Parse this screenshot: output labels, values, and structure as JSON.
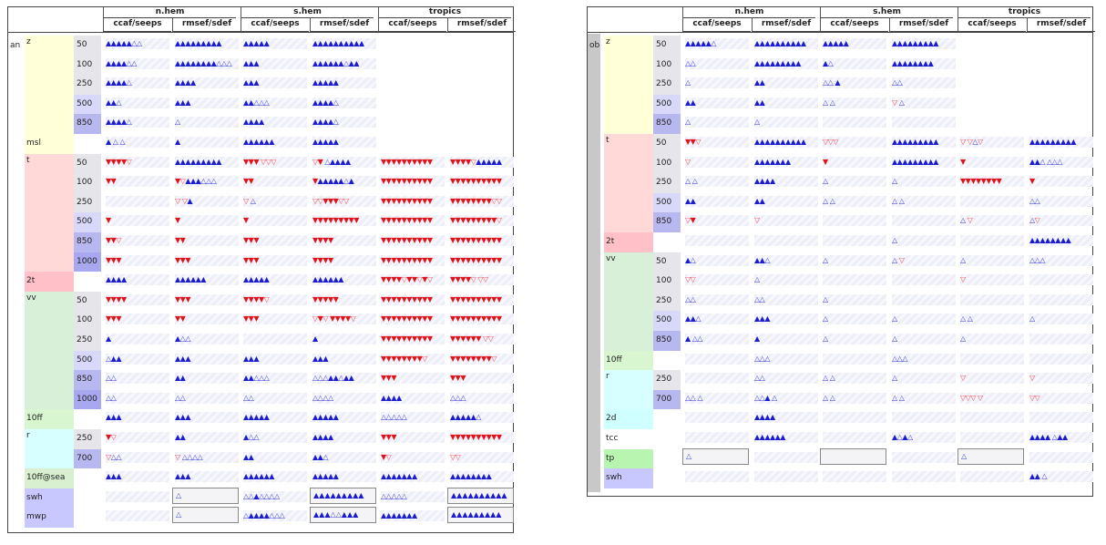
{
  "columns": {
    "groups": [
      "n.hem",
      "s.hem",
      "tropics"
    ],
    "subs": [
      "ccaf/seeps",
      "rmsef/sdef"
    ]
  },
  "colors": {
    "up_solid": "#1b1bd0",
    "up_hollow": "#3a3ad8",
    "down_solid": "#e0121a",
    "down_hollow": "#f04a55"
  },
  "icons": {
    "up": "triangle-up-icon",
    "down": "triangle-down-icon"
  },
  "left": {
    "tag": "an",
    "rows": [
      {
        "var": "z",
        "lvl": "50",
        "c": [
          "▲▲▲▲▲△△",
          "▲▲▲▲▲▲▲▲▲",
          "▲▲▲▲▲",
          "▲▲▲▲▲▲▲▲▲▲",
          "",
          ""
        ]
      },
      {
        "var": "",
        "lvl": "100",
        "c": [
          "▲▲▲▲△△",
          "▲▲▲▲▲▲▲▲△△△",
          "▲▲▲",
          "▲▲▲▲▲▲△▲▲",
          "",
          ""
        ]
      },
      {
        "var": "",
        "lvl": "250",
        "c": [
          "▲▲▲▲△",
          "▲▲▲▲",
          "▲▲▲",
          "▲▲▲▲▲",
          "",
          ""
        ]
      },
      {
        "var": "",
        "lvl": "500",
        "c": [
          "▲▲△",
          "▲▲▲",
          "▲▲△△△",
          "▲▲▲▲△",
          "",
          ""
        ]
      },
      {
        "var": "",
        "lvl": "850",
        "c": [
          "▲▲▲▲△",
          "△",
          "▲▲▲▲",
          "▲▲▲▲△",
          "",
          ""
        ]
      },
      {
        "var": "msl",
        "lvl": "",
        "c": [
          "▲  △ △",
          "▲",
          "▲▲▲▲▲▲",
          "▲▲▲▲▲",
          "",
          ""
        ]
      },
      {
        "var": "t",
        "lvl": "50",
        "c": [
          "▼▼▼▼▽",
          "▲▲▲▲▲▲▲▲▲",
          "▼▼▼ ▽▽▽",
          "▽▼ △▲▲▲▲",
          "▼▼▼▼▼▼▼▼▼▼",
          "▼▼▼▼▽▲▲▲▲▲"
        ]
      },
      {
        "var": "",
        "lvl": "100",
        "c": [
          "▼▼",
          "▼▽▲▲▲△△△",
          "▼▼",
          "▼▲▲▲▲▲△▲",
          "▼▼▼▼▼▼▼▼▼▼",
          "▼▼▼▼▼▼▼▼▼▼"
        ]
      },
      {
        "var": "",
        "lvl": "250",
        "c": [
          "",
          "▽      ▽▲",
          "▽ △",
          "▽▽▼▼▼▽▽",
          "▼▼▼▼▼▼▼▼▼▼",
          "▼▼▼▼▼▼▼▼▽▽"
        ]
      },
      {
        "var": "",
        "lvl": "500",
        "c": [
          "▼",
          "▼",
          "▼",
          "▼▼▼▼▼▼▼▼▼",
          "▼▼▼▼▼▼▼▼▼▼",
          "▼▼▼▼▼▼▼▼▼▽"
        ]
      },
      {
        "var": "",
        "lvl": "850",
        "c": [
          "▼▼▽",
          "▼▼",
          "▼▼▼",
          "▼▼▼▼",
          "▼▼▼▼▼▼▼▼▼▼",
          "▼▼▼▼▼▼▼▼▼▼"
        ]
      },
      {
        "var": "",
        "lvl": "1000",
        "c": [
          "▼▼▼",
          "▼▼▼",
          "▼▼▼",
          "▼▼▼▼",
          "▼▼▼▼▼▼▼▼▼▼",
          "▼▼▼▼▼▼▼▼▼▼"
        ]
      },
      {
        "var": "2t",
        "lvl": "",
        "c": [
          "▲▲▲▲",
          "▲▲▲▲▲▲",
          "▲▲▲▲▲",
          "▲▲▲▲▲▲",
          "▼▼▼▼▽▼▼▽▼▽",
          "▼▼▼▼▽ ▽▽"
        ]
      },
      {
        "var": "vv",
        "lvl": "50",
        "c": [
          "▼▼▼▼",
          "▼▼▼",
          "▼▼▼▼▽",
          "▼▼▼▼▼",
          "▼▼▼▼▼▼▼▼▼▼",
          "▼▼▼▼▼▼▼▼▼▼"
        ]
      },
      {
        "var": "",
        "lvl": "100",
        "c": [
          "▼▼▼",
          "▼▼",
          "▼▼▼",
          "▽▼▽ ▼▼▼▼▽",
          "▼▼▼▼▼▼▼▼▼▼",
          "▼▼▼▼▼▼▼▼▼▼"
        ]
      },
      {
        "var": "",
        "lvl": "250",
        "c": [
          "▲",
          "▲△△",
          "",
          "▲",
          "▼▼▼▼▼▼▼▼▼▼",
          "▼▼▼▼▼▼ ▽▽"
        ]
      },
      {
        "var": "",
        "lvl": "500",
        "c": [
          "△▲▲",
          "▲▲▲",
          "▲▲▲",
          "▲▲▲",
          "▼▼▼▼▼▼▼▼▽",
          "▼▼▼▼▼▼▼▼▽"
        ]
      },
      {
        "var": "",
        "lvl": "850",
        "c": [
          "△△",
          "▲▲",
          "▲▲△△△",
          "△△△▲▲△▲▲",
          "▼▼▼",
          "▼▼▼"
        ]
      },
      {
        "var": "",
        "lvl": "1000",
        "c": [
          "△△",
          "△△",
          "△△",
          "△△△△",
          "▲▲▲▲",
          "△△△"
        ]
      },
      {
        "var": "10ff",
        "lvl": "",
        "c": [
          "▲▲▲",
          "▲▲▲",
          "▲▲▲▲▲",
          "▲▲▲▲▲",
          "△△△△△",
          "▲▲▲▲▲△"
        ]
      },
      {
        "var": "r",
        "lvl": "250",
        "c": [
          "▼▽",
          "▲▲",
          "▲△△",
          "▲▲▲▲",
          "▼▼▼",
          "▼▼▼▼▼▼▼▼▼▼"
        ]
      },
      {
        "var": "",
        "lvl": "700",
        "c": [
          "▽△△",
          "▽ △△△△",
          "▲▲",
          "▲▲△",
          "▼▽",
          "▽▽"
        ]
      },
      {
        "var": "10ff@sea",
        "lvl": "",
        "c": [
          "▲▲▲",
          "▲▲▲",
          "▲▲▲▲▲▲",
          "▲▲▲▲▲",
          "▲▲▲▲▲▲▲",
          "▲▲▲▲▲▲▲▲"
        ]
      },
      {
        "var": "swh",
        "lvl": "",
        "c": [
          "",
          "△",
          "△△▲△△△△",
          "▲▲▲▲▲▲▲▲▲",
          "△△△△△",
          "▲▲▲▲▲▲▲▲▲▲"
        ]
      },
      {
        "var": "mwp",
        "lvl": "",
        "c": [
          "",
          "△",
          "△▲▲▲▲△△△",
          "▲▲▲△△▲▲▲",
          "▲▲▲▲▲▲▲",
          "▲▲▲▲▲▲▲▲▲"
        ]
      }
    ]
  },
  "right": {
    "tag": "ob",
    "rows": [
      {
        "var": "z",
        "lvl": "50",
        "c": [
          "▲▲▲▲▲△",
          "▲▲▲▲▲▲▲▲▲▲",
          "▲▲▲▲▲",
          "▲▲▲▲▲▲▲▲▲",
          "",
          ""
        ]
      },
      {
        "var": "",
        "lvl": "100",
        "c": [
          "△△",
          "▲▲▲▲▲▲▲▲▲",
          "▲△",
          "▲▲▲▲▲▲▲▲",
          "",
          ""
        ]
      },
      {
        "var": "",
        "lvl": "250",
        "c": [
          "△",
          "▲▲",
          "△△ ▲",
          "△△",
          "",
          ""
        ]
      },
      {
        "var": "",
        "lvl": "500",
        "c": [
          "▲▲",
          "▲▲",
          "△ △",
          "▽ △",
          "",
          ""
        ]
      },
      {
        "var": "",
        "lvl": "850",
        "c": [
          "△",
          "△",
          "",
          "",
          "",
          ""
        ]
      },
      {
        "var": "t",
        "lvl": "50",
        "c": [
          "▼▼▽",
          "▲▲▲▲▲▲▲▲▲▲",
          "▽▽▽",
          "▲▲▲▲▲▲▲▲▲",
          "▽ ▽△▽",
          "▲▲▲▲▲▲▲▲▲"
        ]
      },
      {
        "var": "",
        "lvl": "100",
        "c": [
          "▽",
          "▲▲▲▲▲▲▲",
          "▼",
          "▲▲▲▲▲▲▲▲▲",
          "▼",
          "▲▲△ △△△"
        ]
      },
      {
        "var": "",
        "lvl": "250",
        "c": [
          "△ △",
          "▲▲▲▲",
          "△",
          "△",
          "▼▼▼▼▼▼▼▼",
          "▼"
        ]
      },
      {
        "var": "",
        "lvl": "500",
        "c": [
          "▲▲",
          "▲▲",
          "△ △",
          "△ △",
          "",
          "△△"
        ]
      },
      {
        "var": "",
        "lvl": "850",
        "c": [
          "▽▼",
          "▽",
          "",
          "",
          "△ ▽",
          "△▽"
        ]
      },
      {
        "var": "2t",
        "lvl": "",
        "c": [
          "",
          "",
          "",
          "△",
          "",
          "▲▲▲▲▲▲▲▲"
        ]
      },
      {
        "var": "vv",
        "lvl": "50",
        "c": [
          "▲△",
          "▲▲△",
          "△",
          "△ ▽",
          "△",
          "△△△"
        ]
      },
      {
        "var": "",
        "lvl": "100",
        "c": [
          "▽▽",
          "△",
          "",
          "",
          "▽",
          ""
        ]
      },
      {
        "var": "",
        "lvl": "250",
        "c": [
          "△△",
          "△△",
          "△",
          "",
          "",
          ""
        ]
      },
      {
        "var": "",
        "lvl": "500",
        "c": [
          "▲▲△",
          "▲▲▲",
          "△",
          "△",
          "△ △",
          "△"
        ]
      },
      {
        "var": "",
        "lvl": "850",
        "c": [
          "▲ △△",
          "▲",
          "△",
          "△",
          "△",
          ""
        ]
      },
      {
        "var": "10ff",
        "lvl": "",
        "c": [
          "",
          "△△△",
          "",
          "△△△",
          "",
          ""
        ]
      },
      {
        "var": "r",
        "lvl": "250",
        "c": [
          "",
          "△△",
          "△ △",
          "△",
          "▽",
          "▽"
        ]
      },
      {
        "var": "",
        "lvl": "700",
        "c": [
          "△△ △",
          "△△▲ △",
          "△ △",
          "△ △",
          "▽▽▽ ▽",
          "▽▽"
        ]
      },
      {
        "var": "2d",
        "lvl": "",
        "c": [
          "",
          "▲▲▲▲",
          "",
          "",
          "",
          ""
        ]
      },
      {
        "var": "tcc",
        "lvl": "",
        "c": [
          "",
          "▲▲▲▲▲▲",
          "",
          "▲△▲△",
          "",
          "▲▲▲▲ △▲▲"
        ]
      },
      {
        "var": "tp",
        "lvl": "",
        "c": [
          "△",
          "",
          "",
          "",
          "△",
          ""
        ]
      },
      {
        "var": "swh",
        "lvl": "",
        "c": [
          "",
          "",
          "",
          "",
          "",
          "▲▲ △"
        ]
      }
    ]
  }
}
